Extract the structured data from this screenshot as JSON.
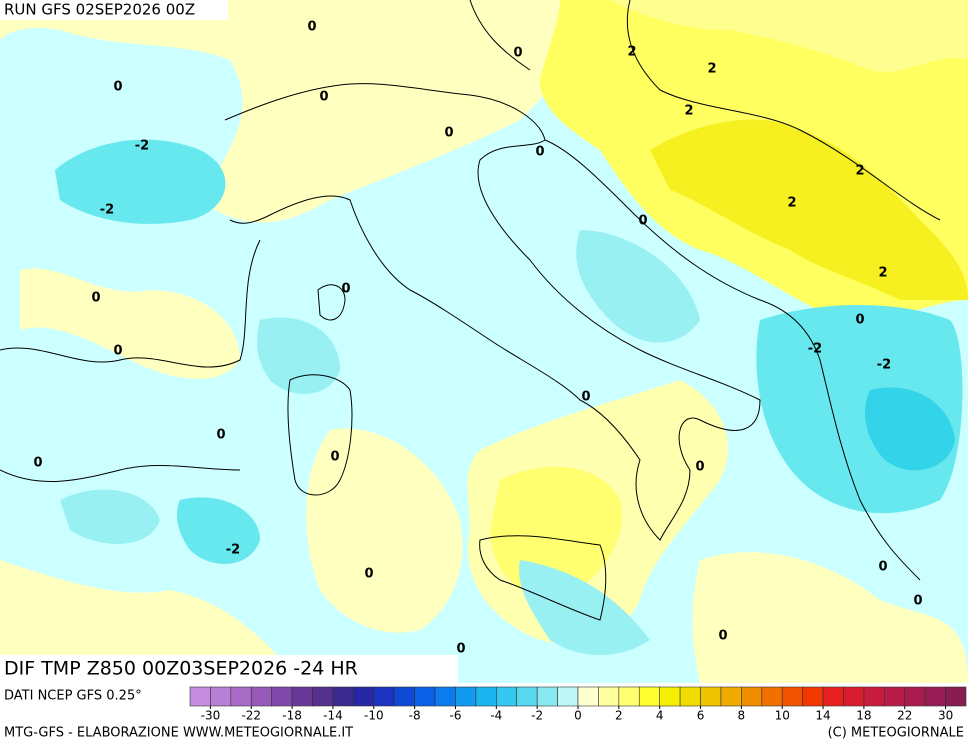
{
  "header": {
    "run": "RUN GFS 02SEP2026 00Z"
  },
  "map": {
    "title": "DIF TMP Z850 00Z03SEP2026 -24 HR",
    "contour_labels": [
      0,
      0,
      2,
      2,
      0,
      0,
      2,
      0,
      -2,
      0,
      2,
      2,
      -2,
      0,
      2,
      0,
      0,
      0,
      -2,
      0,
      -2,
      0,
      0,
      0,
      0,
      0,
      -2,
      0,
      0,
      0,
      0,
      0
    ]
  },
  "colorbar": {
    "ticks": [
      -30,
      -22,
      -18,
      -14,
      -10,
      -8,
      -6,
      -4,
      -2,
      0,
      2,
      4,
      6,
      8,
      10,
      14,
      18,
      22,
      30
    ],
    "colors": [
      "#c58ee0",
      "#b87fd6",
      "#a86cc8",
      "#955ab8",
      "#8048a8",
      "#6a3898",
      "#55308e",
      "#3a2a90",
      "#2626a6",
      "#1a34c0",
      "#1048d6",
      "#0a60e6",
      "#0a7cf0",
      "#109af0",
      "#1cb4f0",
      "#34c8f0",
      "#5ad8f0",
      "#8ae8f2",
      "#bff6f6",
      "#ffffd0",
      "#ffffa0",
      "#ffff70",
      "#ffff30",
      "#f6f000",
      "#f0dc00",
      "#f0c400",
      "#f0aa00",
      "#f08e00",
      "#f07000",
      "#f05400",
      "#f03800",
      "#e82020",
      "#d81c30",
      "#c81c3c",
      "#b81c48",
      "#a81c50",
      "#981c54",
      "#881c50"
    ]
  },
  "footer": {
    "source": "DATI NCEP GFS 0.25°",
    "credit": "MTG-GFS - ELABORAZIONE WWW.METEOGIORNALE.IT",
    "copyright": "(C) METEOGIORNALE"
  }
}
